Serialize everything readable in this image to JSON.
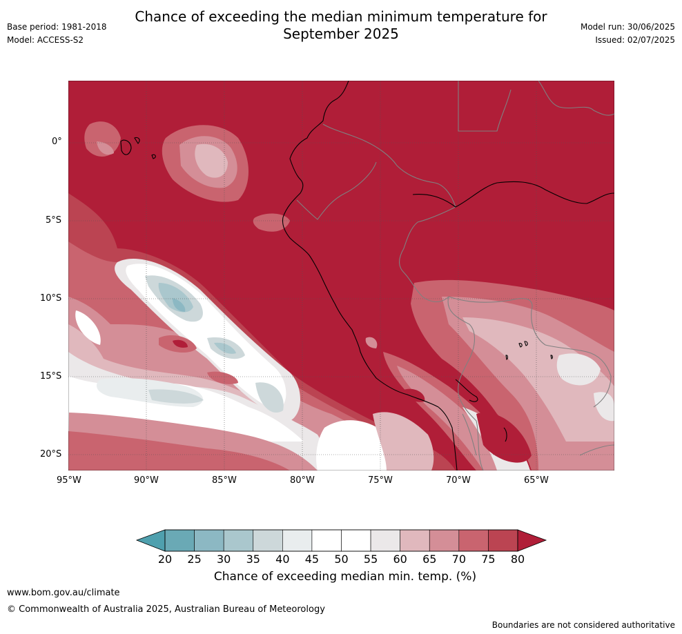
{
  "title_line1": "Chance of exceeding the median minimum temperature for",
  "title_line2": "September 2025",
  "base_period": "Base period: 1981-2018",
  "model": "Model: ACCESS-S2",
  "model_run": "Model run: 30/06/2025",
  "issued": "Issued: 02/07/2025",
  "lat_labels": [
    "0°",
    "5°S",
    "10°S",
    "15°S",
    "20°S"
  ],
  "lon_labels": [
    "95°W",
    "90°W",
    "85°W",
    "80°W",
    "75°W",
    "70°W",
    "65°W"
  ],
  "colorbar": {
    "ticks": [
      "20",
      "25",
      "30",
      "35",
      "40",
      "45",
      "50",
      "55",
      "60",
      "65",
      "70",
      "75",
      "80"
    ],
    "colors": [
      "#6aa9b5",
      "#8cb8c3",
      "#aac7cd",
      "#cdd8da",
      "#e9edee",
      "#ffffff",
      "#ffffff",
      "#ebe8e9",
      "#e0b8bd",
      "#d48e97",
      "#c9646f",
      "#bb4452"
    ],
    "under_color": "#4fa0ae",
    "over_color": "#b01e38",
    "label": "Chance of exceeding median min. temp. (%)"
  },
  "website": "www.bom.gov.au/climate",
  "copyright": "© Commonwealth of Australia 2025, Australian Bureau of Meteorology",
  "disclaimer": "Boundaries are not considered authoritative"
}
